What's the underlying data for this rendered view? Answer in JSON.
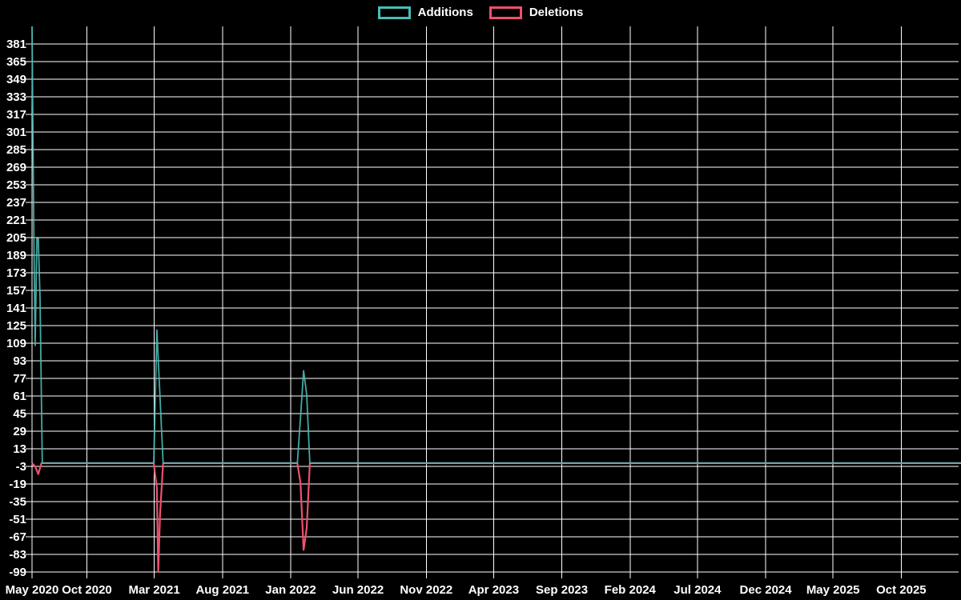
{
  "chart_data": {
    "type": "line",
    "title": "",
    "xlabel": "",
    "ylabel": "",
    "legend_position": "top-center",
    "grid": true,
    "colors": {
      "background": "#000000",
      "grid": "#ffffff",
      "text": "#ffffff",
      "additions": "#49bdb6",
      "deletions": "#f0506e"
    },
    "y_axis": {
      "min": -99,
      "max": 397,
      "tick_min": -99,
      "tick_max": 381,
      "tick_step": 16,
      "tick_labels": [
        "381",
        "365",
        "349",
        "333",
        "317",
        "301",
        "285",
        "269",
        "253",
        "237",
        "221",
        "205",
        "189",
        "173",
        "157",
        "141",
        "125",
        "109",
        "93",
        "77",
        "61",
        "45",
        "29",
        "13",
        "-3",
        "-19",
        "-35",
        "-51",
        "-67",
        "-83",
        "-99"
      ]
    },
    "x_axis": {
      "start_date": "2020-05-31",
      "end_date": "2026-02-12",
      "ticks": [
        {
          "date": "2020-05-31",
          "label": "May 2020"
        },
        {
          "date": "2020-10-01",
          "label": "Oct 2020"
        },
        {
          "date": "2021-03-01",
          "label": "Mar 2021"
        },
        {
          "date": "2021-08-01",
          "label": "Aug 2021"
        },
        {
          "date": "2022-01-01",
          "label": "Jan 2022"
        },
        {
          "date": "2022-06-01",
          "label": "Jun 2022"
        },
        {
          "date": "2022-11-01",
          "label": "Nov 2022"
        },
        {
          "date": "2023-04-01",
          "label": "Apr 2023"
        },
        {
          "date": "2023-09-01",
          "label": "Sep 2023"
        },
        {
          "date": "2024-02-01",
          "label": "Feb 2024"
        },
        {
          "date": "2024-07-01",
          "label": "Jul 2024"
        },
        {
          "date": "2024-12-01",
          "label": "Dec 2024"
        },
        {
          "date": "2025-05-01",
          "label": "May 2025"
        },
        {
          "date": "2025-10-01",
          "label": "Oct 2025"
        }
      ]
    },
    "series": [
      {
        "name": "Additions",
        "color": "#49bdb6",
        "points": [
          [
            "2020-05-31",
            397
          ],
          [
            "2020-06-04",
            212
          ],
          [
            "2020-06-07",
            107
          ],
          [
            "2020-06-11",
            204
          ],
          [
            "2020-06-14",
            204
          ],
          [
            "2020-06-18",
            150
          ],
          [
            "2020-06-23",
            0
          ],
          [
            "2021-02-28",
            0
          ],
          [
            "2021-03-07",
            121
          ],
          [
            "2021-03-14",
            60
          ],
          [
            "2021-03-21",
            0
          ],
          [
            "2022-01-16",
            0
          ],
          [
            "2022-01-23",
            41
          ],
          [
            "2022-01-30",
            84
          ],
          [
            "2022-02-06",
            62
          ],
          [
            "2022-02-13",
            0
          ],
          [
            "2026-02-12",
            0
          ]
        ]
      },
      {
        "name": "Deletions",
        "color": "#f0506e",
        "points": [
          [
            "2020-05-31",
            0
          ],
          [
            "2020-06-07",
            -3
          ],
          [
            "2020-06-14",
            -10
          ],
          [
            "2020-06-21",
            0
          ],
          [
            "2021-02-28",
            0
          ],
          [
            "2021-03-07",
            -23
          ],
          [
            "2021-03-10",
            -99
          ],
          [
            "2021-03-14",
            -47
          ],
          [
            "2021-03-21",
            0
          ],
          [
            "2022-01-16",
            0
          ],
          [
            "2022-01-23",
            -18
          ],
          [
            "2022-01-30",
            -79
          ],
          [
            "2022-02-06",
            -59
          ],
          [
            "2022-02-13",
            0
          ],
          [
            "2026-02-12",
            0
          ]
        ]
      }
    ]
  }
}
